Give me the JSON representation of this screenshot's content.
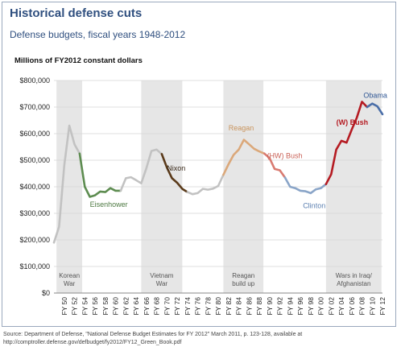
{
  "title": "Historical defense cuts",
  "subtitle": "Defense budgets, fiscal years 1948-2012",
  "source": "Source: Department of Defense, \"National Defense Budget Estimates for FY 2012\" March 2011, p. 123-128, available at http://comptroller.defense.gov/defbudget/fy2012/FY12_Green_Book.pdf",
  "colors": {
    "title": "#2f4f7f",
    "shade": "#e6e6e6",
    "grid": "#d4d4d4",
    "default_line": "#c2c2c2"
  },
  "chart_data": {
    "type": "line",
    "ylabel": "Millions of FY2012 constant dollars",
    "xlabel": "",
    "ylim": [
      0,
      800000
    ],
    "xlim": [
      1948,
      2012
    ],
    "y_ticks": [
      {
        "value": 0,
        "label": "$0"
      },
      {
        "value": 100000,
        "label": "$100,000"
      },
      {
        "value": 200000,
        "label": "$200,000"
      },
      {
        "value": 300000,
        "label": "$300,000"
      },
      {
        "value": 400000,
        "label": "$400,000"
      },
      {
        "value": 500000,
        "label": "$500,000"
      },
      {
        "value": 600000,
        "label": "$600,000"
      },
      {
        "value": 700000,
        "label": "$700,000"
      },
      {
        "value": 800000,
        "label": "$800,000"
      }
    ],
    "x_ticks": [
      {
        "value": 1950,
        "label": "FY 50"
      },
      {
        "value": 1952,
        "label": "FY 52"
      },
      {
        "value": 1954,
        "label": "FY 54"
      },
      {
        "value": 1956,
        "label": "FY 56"
      },
      {
        "value": 1958,
        "label": "FY 58"
      },
      {
        "value": 1960,
        "label": "FY 60"
      },
      {
        "value": 1962,
        "label": "FY 62"
      },
      {
        "value": 1964,
        "label": "FY 64"
      },
      {
        "value": 1966,
        "label": "FY 66"
      },
      {
        "value": 1968,
        "label": "FY 68"
      },
      {
        "value": 1970,
        "label": "FY 70"
      },
      {
        "value": 1972,
        "label": "FY 72"
      },
      {
        "value": 1974,
        "label": "FY 74"
      },
      {
        "value": 1976,
        "label": "FY 76"
      },
      {
        "value": 1978,
        "label": "FY 78"
      },
      {
        "value": 1980,
        "label": "FY 80"
      },
      {
        "value": 1982,
        "label": "FY 82"
      },
      {
        "value": 1984,
        "label": "FY 84"
      },
      {
        "value": 1986,
        "label": "FY 86"
      },
      {
        "value": 1988,
        "label": "FY 88"
      },
      {
        "value": 1990,
        "label": "FY 90"
      },
      {
        "value": 1992,
        "label": "FY 92"
      },
      {
        "value": 1994,
        "label": "FY 94"
      },
      {
        "value": 1996,
        "label": "FY 96"
      },
      {
        "value": 1998,
        "label": "FY 98"
      },
      {
        "value": 2000,
        "label": "FY 00"
      },
      {
        "value": 2002,
        "label": "FY 02"
      },
      {
        "value": 2004,
        "label": "FY 04"
      },
      {
        "value": 2006,
        "label": "FY 06"
      },
      {
        "value": 2008,
        "label": "FY 08"
      },
      {
        "value": 2010,
        "label": "FY 10"
      },
      {
        "value": 2012,
        "label": "FY 12"
      }
    ],
    "periods": [
      {
        "start": 1948.5,
        "end": 1953.5,
        "lines": [
          "Korean",
          "War"
        ]
      },
      {
        "start": 1965,
        "end": 1973,
        "lines": [
          "Vietnam",
          "War"
        ]
      },
      {
        "start": 1981,
        "end": 1988.8,
        "lines": [
          "Reagan",
          "build up"
        ]
      },
      {
        "start": 2001,
        "end": 2011.8,
        "lines": [
          "Wars in Iraq/",
          "Afghanistan"
        ]
      }
    ],
    "series": [
      {
        "name": "",
        "color": "#c2c2c2",
        "points": [
          [
            1948,
            190000
          ],
          [
            1949,
            250000
          ],
          [
            1950,
            480000
          ],
          [
            1951,
            630000
          ],
          [
            1952,
            560000
          ],
          [
            1953,
            525000
          ]
        ]
      },
      {
        "name": "Eisenhower",
        "color": "#5d8c50",
        "label_color": "#4e7a43",
        "points": [
          [
            1953,
            525000
          ],
          [
            1954,
            400000
          ],
          [
            1955,
            362000
          ],
          [
            1956,
            368000
          ],
          [
            1957,
            382000
          ],
          [
            1958,
            380000
          ],
          [
            1959,
            395000
          ],
          [
            1960,
            385000
          ],
          [
            1961,
            385000
          ]
        ]
      },
      {
        "name": "",
        "color": "#c2c2c2",
        "points": [
          [
            1961,
            385000
          ],
          [
            1962,
            432000
          ],
          [
            1963,
            436000
          ],
          [
            1964,
            425000
          ],
          [
            1965,
            413000
          ],
          [
            1966,
            470000
          ],
          [
            1967,
            535000
          ],
          [
            1968,
            540000
          ],
          [
            1969,
            523000
          ]
        ]
      },
      {
        "name": "Nixon",
        "color": "#5a3a1a",
        "label_color": "#3a2a1a",
        "points": [
          [
            1969,
            523000
          ],
          [
            1970,
            472000
          ],
          [
            1971,
            432000
          ],
          [
            1972,
            415000
          ],
          [
            1973,
            392000
          ],
          [
            1974,
            380000
          ]
        ]
      },
      {
        "name": "",
        "color": "#c2c2c2",
        "points": [
          [
            1974,
            380000
          ],
          [
            1975,
            372000
          ],
          [
            1976,
            376000
          ],
          [
            1977,
            392000
          ],
          [
            1978,
            389000
          ],
          [
            1979,
            393000
          ],
          [
            1980,
            403000
          ],
          [
            1981,
            445000
          ]
        ]
      },
      {
        "name": "Reagan",
        "color": "#dba87a",
        "label_color": "#c8935c",
        "points": [
          [
            1981,
            445000
          ],
          [
            1982,
            485000
          ],
          [
            1983,
            520000
          ],
          [
            1984,
            540000
          ],
          [
            1985,
            577000
          ],
          [
            1986,
            560000
          ],
          [
            1987,
            543000
          ],
          [
            1988,
            533000
          ],
          [
            1989,
            525000
          ]
        ]
      },
      {
        "name": "(HW) Bush",
        "color": "#d97a70",
        "label_color": "#c96055",
        "points": [
          [
            1989,
            525000
          ],
          [
            1990,
            508000
          ],
          [
            1991,
            467000
          ],
          [
            1992,
            462000
          ],
          [
            1993,
            435000
          ]
        ]
      },
      {
        "name": "Clinton",
        "color": "#8aa5c8",
        "label_color": "#5a7fb0",
        "points": [
          [
            1993,
            435000
          ],
          [
            1994,
            400000
          ],
          [
            1995,
            395000
          ],
          [
            1996,
            385000
          ],
          [
            1997,
            383000
          ],
          [
            1998,
            376000
          ],
          [
            1999,
            390000
          ],
          [
            2000,
            395000
          ],
          [
            2001,
            410000
          ]
        ]
      },
      {
        "name": "(W) Bush",
        "color": "#b51b22",
        "label_color": "#b51b22",
        "points": [
          [
            2001,
            410000
          ],
          [
            2002,
            447000
          ],
          [
            2003,
            540000
          ],
          [
            2004,
            573000
          ],
          [
            2005,
            566000
          ],
          [
            2006,
            615000
          ],
          [
            2007,
            660000
          ],
          [
            2008,
            720000
          ],
          [
            2009,
            700000
          ]
        ]
      },
      {
        "name": "Obama",
        "color": "#4a6ea8",
        "label_color": "#2f5694",
        "points": [
          [
            2009,
            700000
          ],
          [
            2010,
            713000
          ],
          [
            2011,
            703000
          ],
          [
            2012,
            673000
          ]
        ]
      }
    ],
    "labels": [
      {
        "series": 1,
        "x": 1955,
        "y": 325000
      },
      {
        "series": 3,
        "x": 1970,
        "y": 460000
      },
      {
        "series": 5,
        "x": 1982,
        "y": 612000
      },
      {
        "series": 6,
        "x": 1989.5,
        "y": 507000
      },
      {
        "series": 7,
        "x": 1996.5,
        "y": 320000
      },
      {
        "series": 8,
        "x": 2003,
        "y": 633000
      },
      {
        "series": 9,
        "x": 2008.3,
        "y": 735000
      }
    ]
  }
}
